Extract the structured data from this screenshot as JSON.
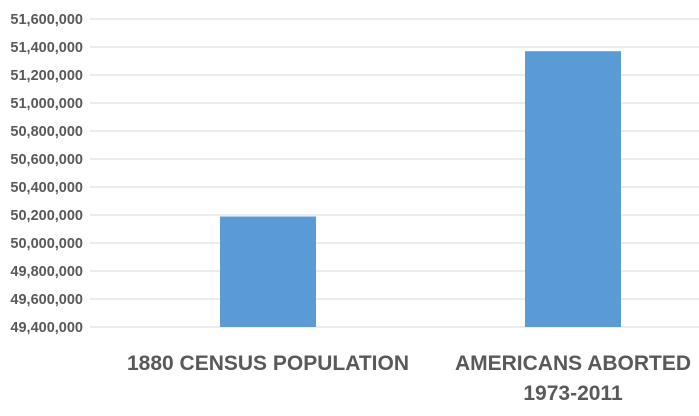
{
  "chart_data": {
    "type": "bar",
    "title": "",
    "xlabel": "",
    "ylabel": "",
    "categories": [
      [
        "1880 CENSUS POPULATION"
      ],
      [
        "AMERICANS ABORTED",
        "1973-2011"
      ]
    ],
    "values": [
      50189209,
      51370000
    ],
    "ylim": [
      49400000,
      51600000
    ],
    "yticks": [
      "49,400,000",
      "49,600,000",
      "49,800,000",
      "50,000,000",
      "50,200,000",
      "50,400,000",
      "50,600,000",
      "50,800,000",
      "51,000,000",
      "51,200,000",
      "51,400,000",
      "51,600,000"
    ],
    "ytick_values": [
      49400000,
      49600000,
      49800000,
      50000000,
      50200000,
      50400000,
      50600000,
      50800000,
      51000000,
      51200000,
      51400000,
      51600000
    ],
    "grid": true,
    "legend": "none",
    "bar_color": "#5b9bd5",
    "grid_color": "#d9d9d9",
    "text_color": "#595959"
  }
}
